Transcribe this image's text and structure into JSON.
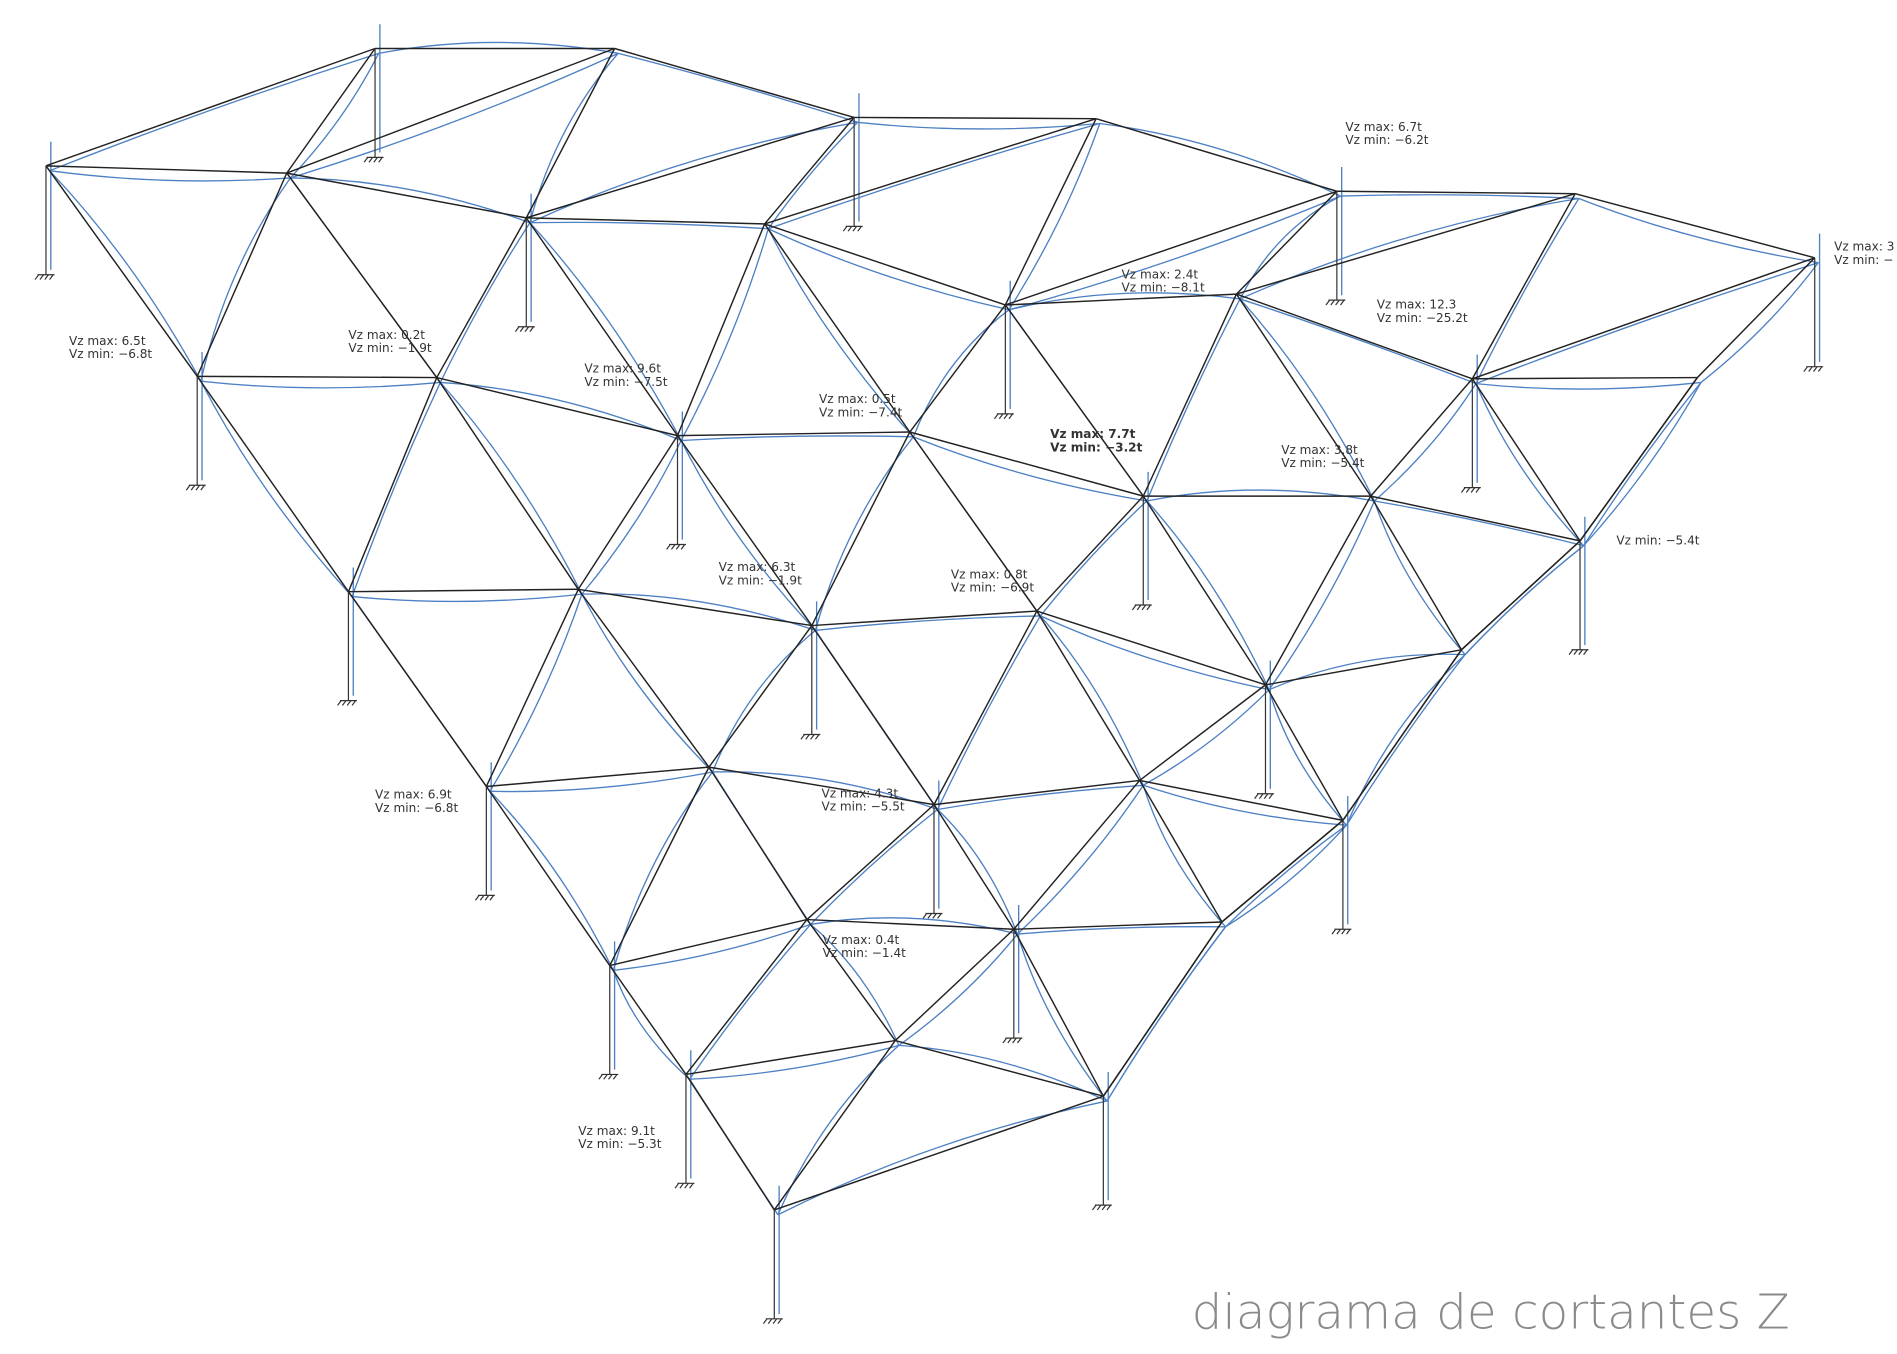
{
  "title": "diagrama de cortantes Z",
  "labels": [
    {
      "lines": [
        "Vz max: 6.7t",
        "Vz min: −6.2t"
      ]
    },
    {
      "lines": [
        "Vz max: 3",
        "Vz min: −"
      ]
    },
    {
      "lines": [
        "Vz max: 2.4t",
        "Vz min: −8.1t"
      ]
    },
    {
      "lines": [
        "Vz max: 12.3",
        "Vz min: −25.2t"
      ]
    },
    {
      "lines": [
        "Vz max: 6.5t",
        "Vz min: −6.8t"
      ]
    },
    {
      "lines": [
        "Vz max: 0.2t",
        "Vz min: −1.9t"
      ]
    },
    {
      "lines": [
        "Vz max: 9.6t",
        "Vz min: −7.5t"
      ]
    },
    {
      "lines": [
        "Vz max: 0.5t",
        "Vz min: −7.4t"
      ]
    },
    {
      "lines": [
        "Vz max: 7.7t",
        "Vz min: −3.2t"
      ]
    },
    {
      "lines": [
        "Vz max: 3.8t",
        "Vz min: −5.4t"
      ]
    },
    {
      "lines": [
        "Vz min: −5.4t"
      ]
    },
    {
      "lines": [
        "Vz max: 6.3t",
        "Vz min: −1.9t"
      ]
    },
    {
      "lines": [
        "Vz max: 0.8t",
        "Vz min: −6.9t"
      ]
    },
    {
      "lines": [
        "Vz max: 6.9t",
        "Vz min: −6.8t"
      ]
    },
    {
      "lines": [
        "Vz max: 4.3t",
        "Vz min: −5.5t"
      ]
    },
    {
      "lines": [
        "Vz max: 0.4t",
        "Vz min: −1.4t"
      ]
    },
    {
      "lines": [
        "Vz max: 9.1t",
        "Vz min: −5.3t"
      ]
    }
  ]
}
